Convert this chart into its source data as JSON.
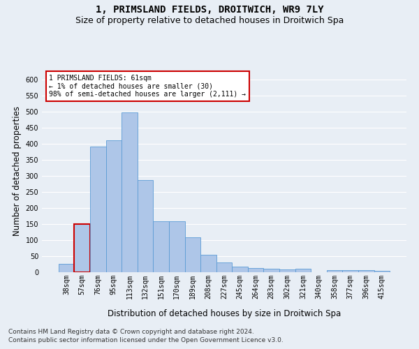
{
  "title": "1, PRIMSLAND FIELDS, DROITWICH, WR9 7LY",
  "subtitle": "Size of property relative to detached houses in Droitwich Spa",
  "xlabel": "Distribution of detached houses by size in Droitwich Spa",
  "ylabel": "Number of detached properties",
  "footer_line1": "Contains HM Land Registry data © Crown copyright and database right 2024.",
  "footer_line2": "Contains public sector information licensed under the Open Government Licence v3.0.",
  "bar_labels": [
    "38sqm",
    "57sqm",
    "76sqm",
    "95sqm",
    "113sqm",
    "132sqm",
    "151sqm",
    "170sqm",
    "189sqm",
    "208sqm",
    "227sqm",
    "245sqm",
    "264sqm",
    "283sqm",
    "302sqm",
    "321sqm",
    "340sqm",
    "358sqm",
    "377sqm",
    "396sqm",
    "415sqm"
  ],
  "bar_values": [
    25,
    150,
    390,
    410,
    498,
    287,
    158,
    158,
    108,
    55,
    30,
    17,
    13,
    10,
    9,
    10,
    0,
    6,
    6,
    6,
    5
  ],
  "bar_color": "#aec6e8",
  "bar_edge_color": "#5b9bd5",
  "highlight_bar_index": 1,
  "highlight_bar_edge_color": "#cc0000",
  "annotation_text": "1 PRIMSLAND FIELDS: 61sqm\n← 1% of detached houses are smaller (30)\n98% of semi-detached houses are larger (2,111) →",
  "annotation_box_edge_color": "#cc0000",
  "annotation_box_face_color": "#ffffff",
  "ylim": [
    0,
    630
  ],
  "yticks": [
    0,
    50,
    100,
    150,
    200,
    250,
    300,
    350,
    400,
    450,
    500,
    550,
    600
  ],
  "background_color": "#e8eef5",
  "grid_color": "#ffffff",
  "title_fontsize": 10,
  "subtitle_fontsize": 9,
  "axis_label_fontsize": 8.5,
  "tick_fontsize": 7,
  "footer_fontsize": 6.5
}
